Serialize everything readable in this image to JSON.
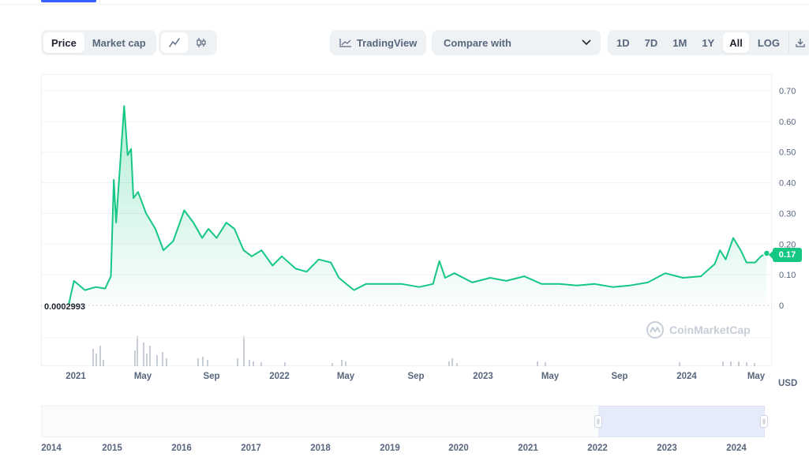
{
  "toolbar": {
    "price_label": "Price",
    "market_cap_label": "Market cap",
    "tradingview_label": "TradingView",
    "compare_label": "Compare with",
    "ranges": [
      "1D",
      "7D",
      "1M",
      "1Y",
      "All",
      "LOG"
    ],
    "active_range": "All",
    "line_icon": "line-chart-icon",
    "candle_icon": "candlestick-icon",
    "download_icon": "download-icon"
  },
  "chart": {
    "baseline_label": "0.0002993",
    "current_price_label": "0.17",
    "currency_label": "USD",
    "watermark": "CoinMarketCap",
    "accent_color": "#16c784"
  },
  "chart_data": {
    "type": "area",
    "ylim": [
      0,
      0.7
    ],
    "yticks": [
      "0",
      "0.10",
      "0.20",
      "0.30",
      "0.40",
      "0.50",
      "0.60",
      "0.70"
    ],
    "xticks": [
      "2021",
      "May",
      "Sep",
      "2022",
      "May",
      "Sep",
      "2023",
      "May",
      "Sep",
      "2024",
      "May"
    ],
    "grid": true,
    "series": [
      {
        "values": [
          [
            "2021-02-01",
            0.003
          ],
          [
            "2021-02-10",
            0.08
          ],
          [
            "2021-03-01",
            0.05
          ],
          [
            "2021-03-20",
            0.06
          ],
          [
            "2021-04-05",
            0.055
          ],
          [
            "2021-04-15",
            0.095
          ],
          [
            "2021-04-20",
            0.41
          ],
          [
            "2021-04-24",
            0.27
          ],
          [
            "2021-05-08",
            0.65
          ],
          [
            "2021-05-14",
            0.49
          ],
          [
            "2021-05-20",
            0.51
          ],
          [
            "2021-05-24",
            0.35
          ],
          [
            "2021-06-01",
            0.37
          ],
          [
            "2021-06-15",
            0.3
          ],
          [
            "2021-07-01",
            0.25
          ],
          [
            "2021-07-15",
            0.18
          ],
          [
            "2021-08-01",
            0.21
          ],
          [
            "2021-08-20",
            0.31
          ],
          [
            "2021-09-05",
            0.27
          ],
          [
            "2021-09-20",
            0.22
          ],
          [
            "2021-10-01",
            0.25
          ],
          [
            "2021-10-15",
            0.22
          ],
          [
            "2021-11-01",
            0.27
          ],
          [
            "2021-11-15",
            0.25
          ],
          [
            "2021-12-01",
            0.18
          ],
          [
            "2021-12-15",
            0.16
          ],
          [
            "2022-01-01",
            0.18
          ],
          [
            "2022-01-20",
            0.13
          ],
          [
            "2022-02-05",
            0.16
          ],
          [
            "2022-03-01",
            0.12
          ],
          [
            "2022-03-20",
            0.11
          ],
          [
            "2022-04-10",
            0.15
          ],
          [
            "2022-05-01",
            0.14
          ],
          [
            "2022-05-15",
            0.09
          ],
          [
            "2022-06-10",
            0.05
          ],
          [
            "2022-07-01",
            0.07
          ],
          [
            "2022-08-01",
            0.07
          ],
          [
            "2022-09-01",
            0.07
          ],
          [
            "2022-10-01",
            0.06
          ],
          [
            "2022-10-25",
            0.07
          ],
          [
            "2022-11-05",
            0.145
          ],
          [
            "2022-11-15",
            0.09
          ],
          [
            "2022-12-01",
            0.105
          ],
          [
            "2023-01-01",
            0.075
          ],
          [
            "2023-02-01",
            0.09
          ],
          [
            "2023-03-01",
            0.08
          ],
          [
            "2023-04-01",
            0.095
          ],
          [
            "2023-05-01",
            0.07
          ],
          [
            "2023-06-01",
            0.07
          ],
          [
            "2023-07-01",
            0.065
          ],
          [
            "2023-08-01",
            0.07
          ],
          [
            "2023-09-01",
            0.06
          ],
          [
            "2023-10-01",
            0.065
          ],
          [
            "2023-11-01",
            0.075
          ],
          [
            "2023-12-01",
            0.105
          ],
          [
            "2024-01-01",
            0.09
          ],
          [
            "2024-02-01",
            0.095
          ],
          [
            "2024-02-25",
            0.135
          ],
          [
            "2024-03-05",
            0.18
          ],
          [
            "2024-03-15",
            0.15
          ],
          [
            "2024-03-28",
            0.22
          ],
          [
            "2024-04-10",
            0.18
          ],
          [
            "2024-04-20",
            0.14
          ],
          [
            "2024-05-05",
            0.14
          ],
          [
            "2024-05-15",
            0.16
          ],
          [
            "2024-05-25",
            0.17
          ]
        ]
      }
    ]
  },
  "navigator": {
    "years": [
      "2014",
      "2015",
      "2016",
      "2017",
      "2018",
      "2019",
      "2020",
      "2021",
      "2022",
      "2023",
      "2024"
    ]
  }
}
